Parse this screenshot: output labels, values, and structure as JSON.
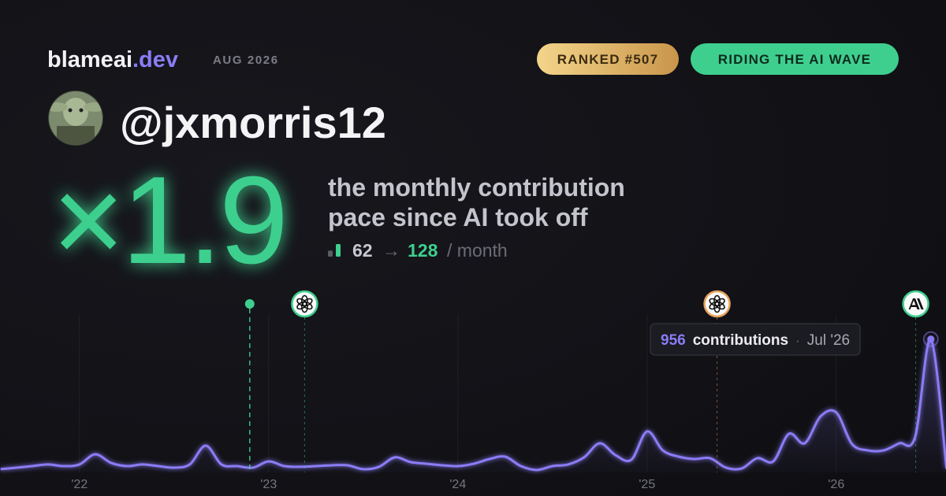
{
  "brand": {
    "name": "blameai",
    "tld": ".dev"
  },
  "date": "AUG 2026",
  "badges": [
    "RANKED #507",
    "RIDING THE AI WAVE"
  ],
  "user": {
    "handle": "@jxmorris12"
  },
  "stat": {
    "multiplier": "×1.9",
    "caption": [
      "the monthly contribution",
      "pace since AI took off"
    ],
    "before": 62,
    "arrow": "→",
    "after": 128,
    "unit": "/ month"
  },
  "chart_data": {
    "type": "line",
    "x": [
      2021.583,
      2021.667,
      2021.75,
      2021.833,
      2021.917,
      2022,
      2022.083,
      2022.167,
      2022.25,
      2022.333,
      2022.417,
      2022.5,
      2022.583,
      2022.667,
      2022.75,
      2022.833,
      2022.917,
      2023,
      2023.083,
      2023.167,
      2023.25,
      2023.333,
      2023.417,
      2023.5,
      2023.583,
      2023.667,
      2023.75,
      2023.833,
      2023.917,
      2024,
      2024.083,
      2024.167,
      2024.25,
      2024.333,
      2024.417,
      2024.5,
      2024.583,
      2024.667,
      2024.75,
      2024.833,
      2024.917,
      2025,
      2025.083,
      2025.167,
      2025.25,
      2025.333,
      2025.417,
      2025.5,
      2025.583,
      2025.667,
      2025.75,
      2025.833,
      2025.917,
      2026,
      2026.083,
      2026.167,
      2026.25,
      2026.333,
      2026.417,
      2026.5,
      2026.583
    ],
    "series": [
      {
        "name": "contributions",
        "color": "#8b7cf6",
        "values": [
          23,
          34,
          45,
          57,
          45,
          57,
          130,
          68,
          45,
          57,
          45,
          34,
          57,
          192,
          57,
          45,
          34,
          79,
          45,
          40,
          45,
          51,
          51,
          23,
          40,
          108,
          74,
          62,
          51,
          45,
          62,
          96,
          113,
          45,
          17,
          45,
          57,
          108,
          209,
          124,
          91,
          294,
          158,
          113,
          96,
          102,
          34,
          28,
          102,
          79,
          277,
          209,
          402,
          430,
          204,
          158,
          158,
          209,
          255,
          956,
          28
        ]
      }
    ],
    "xlim": [
      2021.58,
      2026.58
    ],
    "ylim": [
      0,
      1130
    ],
    "xticks": [
      {
        "value": 2022,
        "label": "'22"
      },
      {
        "value": 2023,
        "label": "'23"
      },
      {
        "value": 2024,
        "label": "'24"
      },
      {
        "value": 2025,
        "label": "'25"
      },
      {
        "value": 2026,
        "label": "'26"
      }
    ],
    "grid": true,
    "events": [
      {
        "x": 2022.9,
        "color": "#3ecf8e",
        "icon": "dot"
      },
      {
        "x": 2023.19,
        "color": "#3ecf8e",
        "icon": "openai"
      },
      {
        "x": 2025.37,
        "color": "#e8a15c",
        "icon": "openai"
      },
      {
        "x": 2026.42,
        "color": "#3ecf8e",
        "icon": "anthropic"
      }
    ],
    "tooltip": {
      "index": 59,
      "label": "contributions",
      "separator": "·",
      "date": "Jul '26"
    }
  }
}
